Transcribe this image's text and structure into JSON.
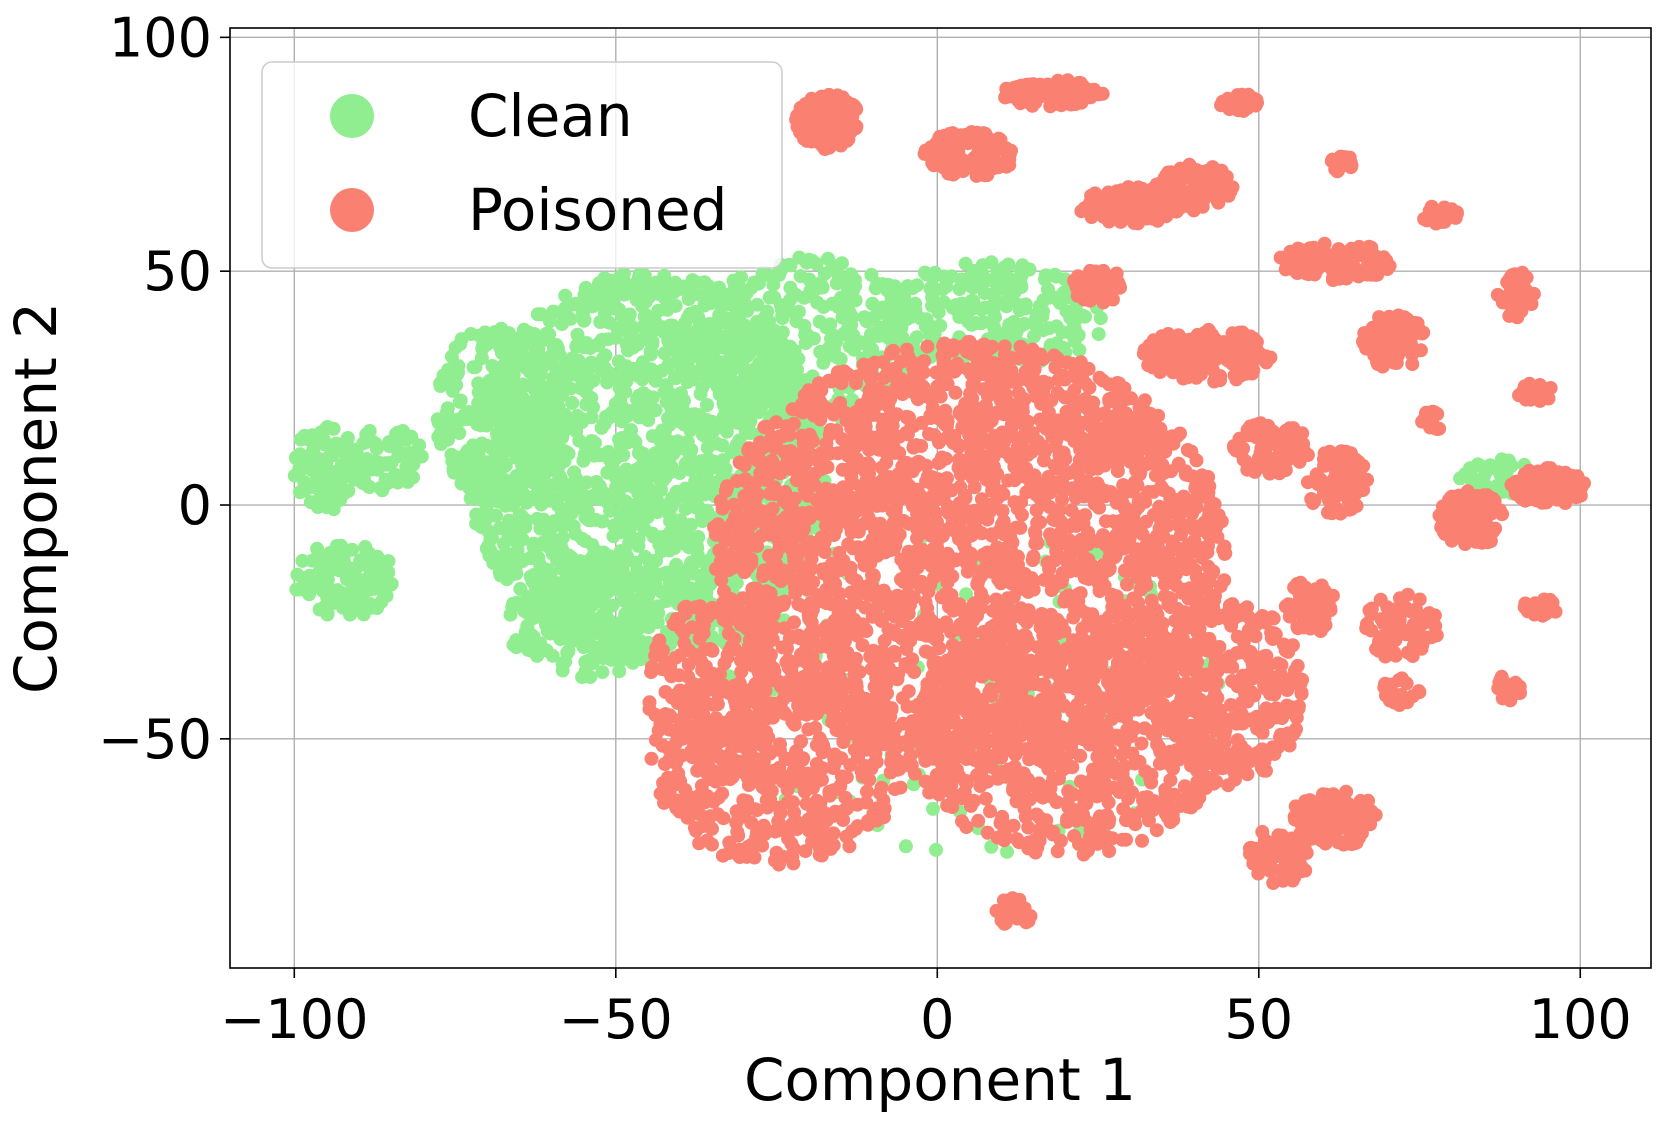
{
  "chart_data": {
    "type": "scatter",
    "xlabel": "Component 1",
    "ylabel": "Component 2",
    "xlim": [
      -110,
      111
    ],
    "ylim": [
      -99,
      102
    ],
    "xticks": [
      -100,
      -50,
      0,
      50,
      100
    ],
    "yticks": [
      -50,
      0,
      50,
      100
    ],
    "xtick_labels": [
      "−100",
      "−50",
      "0",
      "50",
      "100"
    ],
    "ytick_labels": [
      "−50",
      "0",
      "50",
      "100"
    ],
    "grid": true,
    "legend_position": "top-left",
    "series": [
      {
        "name": "Clean",
        "color": "#90ee90",
        "clusters": [
          {
            "cx": -45,
            "cy": 8,
            "rx": 28,
            "ry": 42,
            "n": 1700
          },
          {
            "cx": -20,
            "cy": 35,
            "rx": 18,
            "ry": 18,
            "n": 320
          },
          {
            "cx": 8,
            "cy": 40,
            "rx": 18,
            "ry": 12,
            "n": 220
          },
          {
            "cx": -68,
            "cy": 20,
            "rx": 10,
            "ry": 20,
            "n": 220
          },
          {
            "cx": -95,
            "cy": 8,
            "rx": 5,
            "ry": 10,
            "n": 90
          },
          {
            "cx": -86,
            "cy": 10,
            "rx": 6,
            "ry": 7,
            "n": 70
          },
          {
            "cx": -92,
            "cy": -16,
            "rx": 8,
            "ry": 8,
            "n": 110
          },
          {
            "cx": -55,
            "cy": -25,
            "rx": 12,
            "ry": 12,
            "n": 160
          },
          {
            "cx": 88,
            "cy": 6,
            "rx": 7,
            "ry": 4,
            "n": 40
          },
          {
            "cx": 5,
            "cy": -40,
            "rx": 40,
            "ry": 35,
            "n": 150
          }
        ]
      },
      {
        "name": "Poisoned",
        "color": "#fa8072",
        "clusters": [
          {
            "cx": 5,
            "cy": -10,
            "rx": 40,
            "ry": 45,
            "n": 2400
          },
          {
            "cx": 20,
            "cy": -50,
            "rx": 25,
            "ry": 25,
            "n": 700
          },
          {
            "cx": -25,
            "cy": -55,
            "rx": 20,
            "ry": 22,
            "n": 450
          },
          {
            "cx": 45,
            "cy": -40,
            "rx": 12,
            "ry": 20,
            "n": 300
          },
          {
            "cx": -35,
            "cy": -40,
            "rx": 10,
            "ry": 20,
            "n": 200
          },
          {
            "cx": -17,
            "cy": 82,
            "rx": 5,
            "ry": 6,
            "n": 120
          },
          {
            "cx": 18,
            "cy": 88,
            "rx": 8,
            "ry": 3,
            "n": 120
          },
          {
            "cx": 5,
            "cy": 75,
            "rx": 7,
            "ry": 5,
            "n": 120
          },
          {
            "cx": 30,
            "cy": 64,
            "rx": 8,
            "ry": 4,
            "n": 120
          },
          {
            "cx": 40,
            "cy": 68,
            "rx": 6,
            "ry": 5,
            "n": 110
          },
          {
            "cx": 62,
            "cy": 52,
            "rx": 9,
            "ry": 4,
            "n": 110
          },
          {
            "cx": 42,
            "cy": 32,
            "rx": 10,
            "ry": 6,
            "n": 140
          },
          {
            "cx": 25,
            "cy": 47,
            "rx": 4,
            "ry": 4,
            "n": 60
          },
          {
            "cx": 71,
            "cy": 35,
            "rx": 5,
            "ry": 6,
            "n": 90
          },
          {
            "cx": 52,
            "cy": 12,
            "rx": 6,
            "ry": 6,
            "n": 90
          },
          {
            "cx": 62,
            "cy": 5,
            "rx": 5,
            "ry": 7,
            "n": 80
          },
          {
            "cx": 83,
            "cy": -3,
            "rx": 5,
            "ry": 6,
            "n": 90
          },
          {
            "cx": 95,
            "cy": 4,
            "rx": 6,
            "ry": 4,
            "n": 80
          },
          {
            "cx": 58,
            "cy": -22,
            "rx": 4,
            "ry": 6,
            "n": 60
          },
          {
            "cx": 72,
            "cy": -26,
            "rx": 6,
            "ry": 7,
            "n": 90
          },
          {
            "cx": 62,
            "cy": -67,
            "rx": 7,
            "ry": 6,
            "n": 120
          },
          {
            "cx": 53,
            "cy": -75,
            "rx": 5,
            "ry": 6,
            "n": 80
          },
          {
            "cx": 90,
            "cy": 45,
            "rx": 3,
            "ry": 5,
            "n": 40
          },
          {
            "cx": 93,
            "cy": 24,
            "rx": 3,
            "ry": 2,
            "n": 25
          },
          {
            "cx": 94,
            "cy": -22,
            "rx": 3,
            "ry": 2,
            "n": 25
          },
          {
            "cx": 89,
            "cy": -39,
            "rx": 2,
            "ry": 3,
            "n": 25
          },
          {
            "cx": 72,
            "cy": -40,
            "rx": 3,
            "ry": 3,
            "n": 30
          },
          {
            "cx": 78,
            "cy": 62,
            "rx": 3,
            "ry": 2,
            "n": 25
          },
          {
            "cx": 63,
            "cy": 73,
            "rx": 2,
            "ry": 2,
            "n": 20
          },
          {
            "cx": 47,
            "cy": 86,
            "rx": 3,
            "ry": 2,
            "n": 25
          },
          {
            "cx": 77,
            "cy": 18,
            "rx": 2,
            "ry": 2,
            "n": 18
          },
          {
            "cx": 12,
            "cy": -87,
            "rx": 3,
            "ry": 3,
            "n": 30
          },
          {
            "cx": 30,
            "cy": 14,
            "rx": 6,
            "ry": 6,
            "n": 80
          }
        ]
      }
    ]
  }
}
